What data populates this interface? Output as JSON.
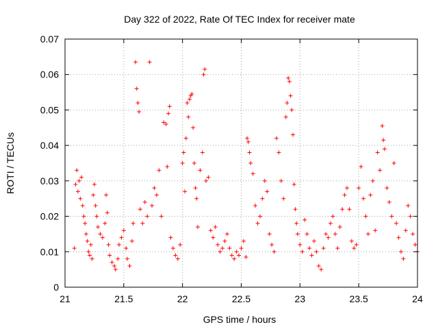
{
  "chart_data": {
    "type": "scatter",
    "title": "Day 322 of 2022, Rate Of TEC Index for receiver mate",
    "xlabel": "GPS time / hours",
    "ylabel": "ROTI / TECUs",
    "xlim": [
      21,
      24
    ],
    "ylim": [
      0,
      0.07
    ],
    "xticks": [
      21,
      21.5,
      22,
      22.5,
      23,
      23.5,
      24
    ],
    "xtick_labels": [
      "21",
      "21.5",
      "22",
      "22.5",
      "23",
      "23.5",
      "24"
    ],
    "yticks": [
      0,
      0.01,
      0.02,
      0.03,
      0.04,
      0.05,
      0.06,
      0.07
    ],
    "ytick_labels": [
      "0",
      "0.01",
      "0.02",
      "0.03",
      "0.04",
      "0.05",
      "0.06",
      "0.07"
    ],
    "grid": true,
    "marker": "+",
    "color": "#ff0000",
    "series": [
      {
        "name": "ROTI",
        "points": [
          [
            21.08,
            0.011
          ],
          [
            21.09,
            0.029
          ],
          [
            21.1,
            0.033
          ],
          [
            21.11,
            0.027
          ],
          [
            21.12,
            0.03
          ],
          [
            21.13,
            0.025
          ],
          [
            21.14,
            0.031
          ],
          [
            21.15,
            0.023
          ],
          [
            21.16,
            0.02
          ],
          [
            21.17,
            0.018
          ],
          [
            21.18,
            0.015
          ],
          [
            21.19,
            0.013
          ],
          [
            21.2,
            0.01
          ],
          [
            21.21,
            0.009
          ],
          [
            21.22,
            0.012
          ],
          [
            21.23,
            0.008
          ],
          [
            21.24,
            0.026
          ],
          [
            21.25,
            0.029
          ],
          [
            21.26,
            0.023
          ],
          [
            21.27,
            0.02
          ],
          [
            21.28,
            0.017
          ],
          [
            21.3,
            0.015
          ],
          [
            21.32,
            0.014
          ],
          [
            21.34,
            0.018
          ],
          [
            21.35,
            0.026
          ],
          [
            21.36,
            0.021
          ],
          [
            21.37,
            0.012
          ],
          [
            21.38,
            0.009
          ],
          [
            21.4,
            0.007
          ],
          [
            21.42,
            0.006
          ],
          [
            21.43,
            0.005
          ],
          [
            21.45,
            0.008
          ],
          [
            21.46,
            0.012
          ],
          [
            21.48,
            0.014
          ],
          [
            21.5,
            0.016
          ],
          [
            21.52,
            0.011
          ],
          [
            21.53,
            0.008
          ],
          [
            21.55,
            0.006
          ],
          [
            21.57,
            0.013
          ],
          [
            21.58,
            0.018
          ],
          [
            21.6,
            0.0635
          ],
          [
            21.61,
            0.056
          ],
          [
            21.62,
            0.052
          ],
          [
            21.63,
            0.0495
          ],
          [
            21.64,
            0.022
          ],
          [
            21.66,
            0.018
          ],
          [
            21.68,
            0.024
          ],
          [
            21.7,
            0.02
          ],
          [
            21.72,
            0.0635
          ],
          [
            21.74,
            0.023
          ],
          [
            21.76,
            0.028
          ],
          [
            21.78,
            0.026
          ],
          [
            21.8,
            0.033
          ],
          [
            21.82,
            0.02
          ],
          [
            21.84,
            0.0465
          ],
          [
            21.86,
            0.046
          ],
          [
            21.87,
            0.034
          ],
          [
            21.88,
            0.049
          ],
          [
            21.89,
            0.051
          ],
          [
            21.9,
            0.014
          ],
          [
            21.92,
            0.011
          ],
          [
            21.94,
            0.009
          ],
          [
            21.96,
            0.008
          ],
          [
            21.98,
            0.012
          ],
          [
            22.0,
            0.035
          ],
          [
            22.01,
            0.038
          ],
          [
            22.02,
            0.027
          ],
          [
            22.03,
            0.042
          ],
          [
            22.04,
            0.052
          ],
          [
            22.05,
            0.048
          ],
          [
            22.06,
            0.053
          ],
          [
            22.07,
            0.054
          ],
          [
            22.08,
            0.0545
          ],
          [
            22.09,
            0.045
          ],
          [
            22.1,
            0.035
          ],
          [
            22.11,
            0.028
          ],
          [
            22.12,
            0.025
          ],
          [
            22.13,
            0.017
          ],
          [
            22.15,
            0.033
          ],
          [
            22.17,
            0.038
          ],
          [
            22.18,
            0.06
          ],
          [
            22.19,
            0.0615
          ],
          [
            22.2,
            0.03
          ],
          [
            22.22,
            0.031
          ],
          [
            22.24,
            0.016
          ],
          [
            22.26,
            0.014
          ],
          [
            22.28,
            0.017
          ],
          [
            22.3,
            0.012
          ],
          [
            22.32,
            0.01
          ],
          [
            22.34,
            0.011
          ],
          [
            22.36,
            0.013
          ],
          [
            22.38,
            0.015
          ],
          [
            22.4,
            0.011
          ],
          [
            22.42,
            0.009
          ],
          [
            22.44,
            0.008
          ],
          [
            22.46,
            0.01
          ],
          [
            22.48,
            0.009
          ],
          [
            22.5,
            0.011
          ],
          [
            22.52,
            0.013
          ],
          [
            22.54,
            0.0085
          ],
          [
            22.55,
            0.042
          ],
          [
            22.56,
            0.041
          ],
          [
            22.57,
            0.038
          ],
          [
            22.58,
            0.035
          ],
          [
            22.6,
            0.032
          ],
          [
            22.62,
            0.023
          ],
          [
            22.64,
            0.018
          ],
          [
            22.66,
            0.02
          ],
          [
            22.68,
            0.025
          ],
          [
            22.7,
            0.03
          ],
          [
            22.72,
            0.027
          ],
          [
            22.74,
            0.015
          ],
          [
            22.76,
            0.012
          ],
          [
            22.78,
            0.01
          ],
          [
            22.8,
            0.042
          ],
          [
            22.82,
            0.038
          ],
          [
            22.84,
            0.03
          ],
          [
            22.86,
            0.025
          ],
          [
            22.88,
            0.048
          ],
          [
            22.89,
            0.052
          ],
          [
            22.9,
            0.059
          ],
          [
            22.91,
            0.058
          ],
          [
            22.92,
            0.054
          ],
          [
            22.93,
            0.05
          ],
          [
            22.94,
            0.043
          ],
          [
            22.95,
            0.029
          ],
          [
            22.96,
            0.022
          ],
          [
            22.97,
            0.018
          ],
          [
            22.98,
            0.015
          ],
          [
            23.0,
            0.012
          ],
          [
            23.02,
            0.01
          ],
          [
            23.04,
            0.019
          ],
          [
            23.06,
            0.015
          ],
          [
            23.08,
            0.011
          ],
          [
            23.1,
            0.009
          ],
          [
            23.12,
            0.013
          ],
          [
            23.14,
            0.01
          ],
          [
            23.16,
            0.006
          ],
          [
            23.18,
            0.005
          ],
          [
            23.2,
            0.011
          ],
          [
            23.22,
            0.015
          ],
          [
            23.24,
            0.014
          ],
          [
            23.26,
            0.018
          ],
          [
            23.28,
            0.02
          ],
          [
            23.3,
            0.015
          ],
          [
            23.32,
            0.011
          ],
          [
            23.34,
            0.017
          ],
          [
            23.36,
            0.022
          ],
          [
            23.38,
            0.026
          ],
          [
            23.4,
            0.028
          ],
          [
            23.42,
            0.022
          ],
          [
            23.44,
            0.013
          ],
          [
            23.46,
            0.011
          ],
          [
            23.48,
            0.012
          ],
          [
            23.5,
            0.028
          ],
          [
            23.52,
            0.034
          ],
          [
            23.54,
            0.025
          ],
          [
            23.56,
            0.02
          ],
          [
            23.58,
            0.015
          ],
          [
            23.6,
            0.026
          ],
          [
            23.62,
            0.03
          ],
          [
            23.64,
            0.016
          ],
          [
            23.66,
            0.038
          ],
          [
            23.68,
            0.033
          ],
          [
            23.7,
            0.0455
          ],
          [
            23.71,
            0.0415
          ],
          [
            23.72,
            0.039
          ],
          [
            23.74,
            0.028
          ],
          [
            23.76,
            0.024
          ],
          [
            23.78,
            0.02
          ],
          [
            23.8,
            0.035
          ],
          [
            23.82,
            0.018
          ],
          [
            23.84,
            0.014
          ],
          [
            23.86,
            0.01
          ],
          [
            23.88,
            0.008
          ],
          [
            23.9,
            0.016
          ],
          [
            23.92,
            0.023
          ],
          [
            23.94,
            0.02
          ],
          [
            23.96,
            0.015
          ],
          [
            23.98,
            0.012
          ],
          [
            24.0,
            0.01
          ]
        ]
      }
    ]
  }
}
